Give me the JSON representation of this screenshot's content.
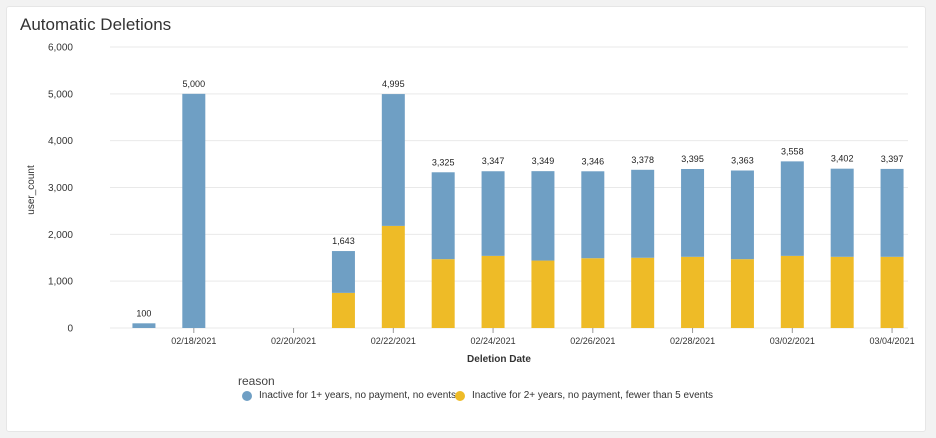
{
  "card": {
    "title": "Automatic Deletions"
  },
  "chart_data": {
    "type": "bar",
    "stacked": true,
    "title": "Automatic Deletions",
    "xlabel": "Deletion Date",
    "ylabel": "user_count",
    "ylim": [
      0,
      6000
    ],
    "yticks": [
      0,
      1000,
      2000,
      3000,
      4000,
      5000,
      6000
    ],
    "ytick_labels": [
      "0",
      "1,000",
      "2,000",
      "3,000",
      "4,000",
      "5,000",
      "6,000"
    ],
    "grid": true,
    "legend_title": "reason",
    "legend_position": "bottom-left",
    "categories": [
      "02/17/2021",
      "02/18/2021",
      "02/19/2021",
      "02/20/2021",
      "02/21/2021",
      "02/22/2021",
      "02/23/2021",
      "02/24/2021",
      "02/25/2021",
      "02/26/2021",
      "02/27/2021",
      "02/28/2021",
      "03/01/2021",
      "03/02/2021",
      "03/03/2021",
      "03/04/2021"
    ],
    "xtick_labels": [
      "",
      "02/18/2021",
      "",
      "02/20/2021",
      "",
      "02/22/2021",
      "",
      "02/24/2021",
      "",
      "02/26/2021",
      "",
      "02/28/2021",
      "",
      "03/02/2021",
      "",
      "03/04/2021"
    ],
    "series": [
      {
        "name": "Inactive for 2+ years, no payment, fewer than 5 events",
        "color": "#eebb27",
        "values": [
          0,
          0,
          0,
          0,
          750,
          2180,
          1470,
          1540,
          1440,
          1490,
          1500,
          1520,
          1470,
          1540,
          1520,
          1520
        ]
      },
      {
        "name": "Inactive for 1+ years, no payment, no events",
        "color": "#6f9fc4",
        "values": [
          100,
          5000,
          0,
          0,
          893,
          2815,
          1855,
          1807,
          1909,
          1856,
          1878,
          1875,
          1893,
          2018,
          1882,
          1877
        ]
      }
    ],
    "totals": [
      100,
      5000,
      null,
      null,
      1643,
      4995,
      3325,
      3347,
      3349,
      3346,
      3378,
      3395,
      3363,
      3558,
      3402,
      3397
    ],
    "total_labels": [
      "100",
      "5,000",
      "",
      "",
      "1,643",
      "4,995",
      "3,325",
      "3,347",
      "3,349",
      "3,346",
      "3,378",
      "3,395",
      "3,363",
      "3,558",
      "3,402",
      "3,397"
    ]
  },
  "legend": {
    "title": "reason",
    "items": [
      {
        "label": "Inactive for 1+ years, no payment, no events",
        "color": "#6f9fc4"
      },
      {
        "label": "Inactive for 2+ years, no payment, fewer than 5 events",
        "color": "#eebb27"
      }
    ]
  }
}
